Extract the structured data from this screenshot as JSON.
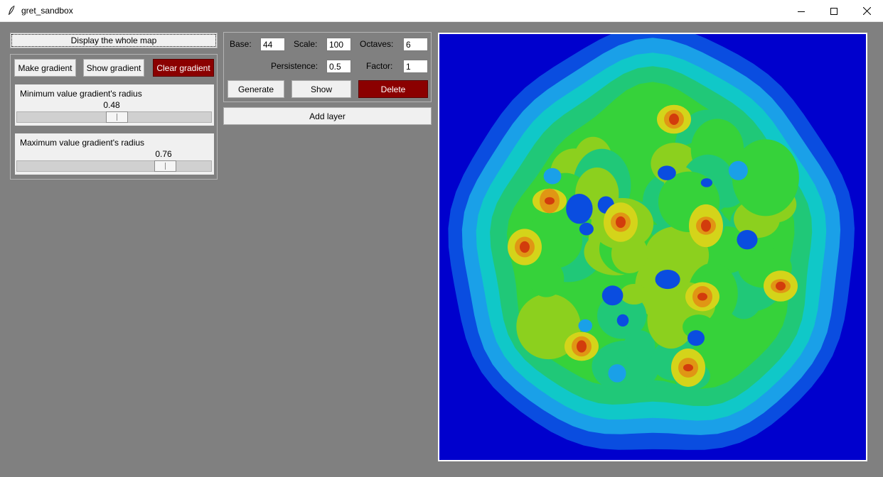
{
  "window": {
    "title": "gret_sandbox",
    "icon": "feather-icon"
  },
  "window_controls": [
    "minimize-icon",
    "maximize-icon",
    "close-icon"
  ],
  "left_panel": {
    "display_map_label": "Display the whole map",
    "make_gradient_label": "Make gradient",
    "show_gradient_label": "Show gradient",
    "clear_gradient_label": "Clear gradient",
    "min_radius": {
      "title": "Minimum value gradient's radius",
      "value": "0.48",
      "fraction": 0.48
    },
    "max_radius": {
      "title": "Maximum value gradient's radius",
      "value": "0.76",
      "fraction": 0.76
    }
  },
  "layer_panel": {
    "base_label": "Base:",
    "base_value": "44",
    "scale_label": "Scale:",
    "scale_value": "100",
    "octaves_label": "Octaves:",
    "octaves_value": "6",
    "persistence_label": "Persistence:",
    "persistence_value": "0.5",
    "factor_label": "Factor:",
    "factor_value": "1",
    "generate_label": "Generate",
    "show_label": "Show",
    "delete_label": "Delete",
    "add_layer_label": "Add layer"
  },
  "map": {
    "type": "noise-heightmap",
    "colormap": [
      "#0000cd",
      "#0a4de0",
      "#1aa0e8",
      "#10c8c8",
      "#20c878",
      "#36d23a",
      "#8cd01e",
      "#d4d41a",
      "#e09614",
      "#d23c0c"
    ]
  },
  "colors": {
    "danger": "#8b0000",
    "background": "#808080"
  }
}
